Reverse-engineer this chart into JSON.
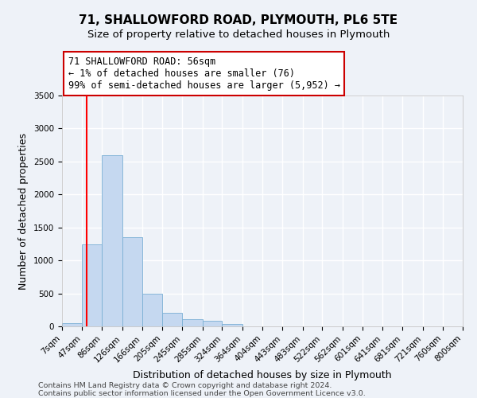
{
  "title": "71, SHALLOWFORD ROAD, PLYMOUTH, PL6 5TE",
  "subtitle": "Size of property relative to detached houses in Plymouth",
  "xlabel": "Distribution of detached houses by size in Plymouth",
  "ylabel": "Number of detached properties",
  "footer_line1": "Contains HM Land Registry data © Crown copyright and database right 2024.",
  "footer_line2": "Contains public sector information licensed under the Open Government Licence v3.0.",
  "annotation_line1": "71 SHALLOWFORD ROAD: 56sqm",
  "annotation_line2": "← 1% of detached houses are smaller (76)",
  "annotation_line3": "99% of semi-detached houses are larger (5,952) →",
  "bar_edges": [
    7,
    47,
    86,
    126,
    166,
    205,
    245,
    285,
    324,
    364,
    404,
    443,
    483,
    522,
    562,
    601,
    641,
    681,
    721,
    760,
    800
  ],
  "bar_heights": [
    50,
    1240,
    2590,
    1350,
    500,
    200,
    110,
    80,
    35,
    5,
    5,
    5,
    5,
    2,
    2,
    2,
    2,
    2,
    2,
    2
  ],
  "bar_color": "#c5d8f0",
  "bar_edge_color": "#7aafd4",
  "red_line_x": 56,
  "ylim": [
    0,
    3500
  ],
  "yticks": [
    0,
    500,
    1000,
    1500,
    2000,
    2500,
    3000,
    3500
  ],
  "tick_labels": [
    "7sqm",
    "47sqm",
    "86sqm",
    "126sqm",
    "166sqm",
    "205sqm",
    "245sqm",
    "285sqm",
    "324sqm",
    "364sqm",
    "404sqm",
    "443sqm",
    "483sqm",
    "522sqm",
    "562sqm",
    "601sqm",
    "641sqm",
    "681sqm",
    "721sqm",
    "760sqm",
    "800sqm"
  ],
  "background_color": "#eef2f8",
  "grid_color": "#ffffff",
  "annotation_box_color": "#ffffff",
  "annotation_box_edge_color": "#cc0000",
  "title_fontsize": 11,
  "subtitle_fontsize": 9.5,
  "axis_label_fontsize": 9,
  "annotation_fontsize": 8.5,
  "tick_fontsize": 7.5,
  "footer_fontsize": 6.8
}
